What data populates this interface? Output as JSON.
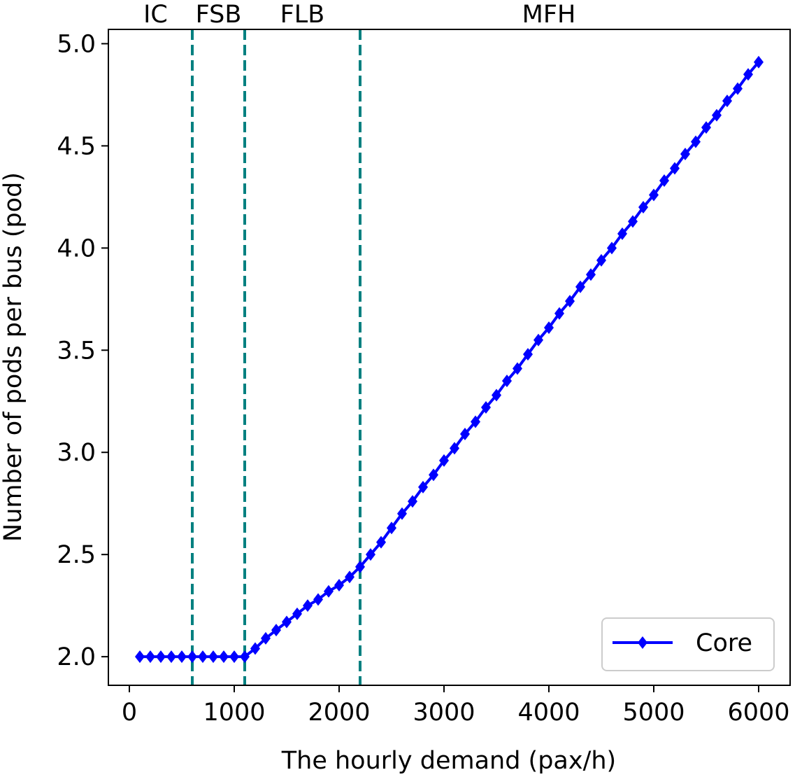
{
  "chart_data": {
    "type": "line",
    "title": "",
    "xlabel": "The hourly demand (pax/h)",
    "ylabel": "Number of pods per bus (pod)",
    "xlim": [
      -200,
      6300
    ],
    "ylim": [
      1.86,
      5.07
    ],
    "xticks": [
      0,
      1000,
      2000,
      3000,
      4000,
      5000,
      6000
    ],
    "xtick_labels": [
      "0",
      "1000",
      "2000",
      "3000",
      "4000",
      "5000",
      "6000"
    ],
    "yticks": [
      2.0,
      2.5,
      3.0,
      3.5,
      4.0,
      4.5,
      5.0
    ],
    "ytick_labels": [
      "2.0",
      "2.5",
      "3.0",
      "3.5",
      "4.0",
      "4.5",
      "5.0"
    ],
    "grid": false,
    "legend_position": "bottom-right",
    "series": [
      {
        "name": "Core",
        "color": "#0000ff",
        "marker": "diamond",
        "x": [
          100,
          200,
          300,
          400,
          500,
          600,
          700,
          800,
          900,
          1000,
          1100,
          1200,
          1300,
          1400,
          1500,
          1600,
          1700,
          1800,
          1900,
          2000,
          2100,
          2200,
          2300,
          2400,
          2500,
          2600,
          2700,
          2800,
          2900,
          3000,
          3100,
          3200,
          3300,
          3400,
          3500,
          3600,
          3700,
          3800,
          3900,
          4000,
          4100,
          4200,
          4300,
          4400,
          4500,
          4600,
          4700,
          4800,
          4900,
          5000,
          5100,
          5200,
          5300,
          5400,
          5500,
          5600,
          5700,
          5800,
          5900,
          6000
        ],
        "y": [
          2.0,
          2.0,
          2.0,
          2.0,
          2.0,
          2.0,
          2.0,
          2.0,
          2.0,
          2.0,
          2.0,
          2.04,
          2.09,
          2.13,
          2.17,
          2.21,
          2.25,
          2.28,
          2.32,
          2.35,
          2.39,
          2.44,
          2.5,
          2.56,
          2.63,
          2.7,
          2.76,
          2.83,
          2.89,
          2.96,
          3.02,
          3.09,
          3.15,
          3.22,
          3.28,
          3.35,
          3.41,
          3.48,
          3.55,
          3.61,
          3.68,
          3.74,
          3.81,
          3.87,
          3.94,
          4.0,
          4.07,
          4.13,
          4.2,
          4.26,
          4.33,
          4.39,
          4.46,
          4.52,
          4.59,
          4.65,
          4.72,
          4.78,
          4.85,
          4.91
        ]
      }
    ],
    "vlines": {
      "color": "#008080",
      "style": "dashed",
      "x": [
        600,
        1100,
        2200
      ]
    },
    "regions": [
      {
        "label": "IC",
        "x": 250
      },
      {
        "label": "FSB",
        "x": 850
      },
      {
        "label": "FLB",
        "x": 1650
      },
      {
        "label": "MFH",
        "x": 4000
      }
    ]
  }
}
